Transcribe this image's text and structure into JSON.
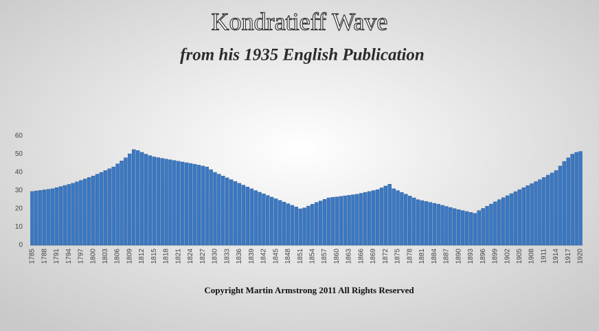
{
  "chart_data": {
    "type": "bar",
    "title": "Kondratieff Wave",
    "subtitle": "from his 1935 English Publication",
    "annotation": "Copyright Martin Armstrong 2011 All Rights Reserved",
    "color": "#3b78c2",
    "grid": false,
    "ylim": [
      0,
      60
    ],
    "yticks": [
      0,
      10,
      20,
      30,
      40,
      50,
      60
    ],
    "categories": [
      "1785",
      null,
      null,
      "1788",
      null,
      null,
      "1791",
      null,
      null,
      "1794",
      null,
      null,
      "1797",
      null,
      null,
      "1800",
      null,
      null,
      "1803",
      null,
      null,
      "1806",
      null,
      null,
      "1809",
      null,
      null,
      "1812",
      null,
      null,
      "1815",
      null,
      null,
      "1818",
      null,
      null,
      "1821",
      null,
      null,
      "1824",
      null,
      null,
      "1827",
      null,
      null,
      "1830",
      null,
      null,
      "1833",
      null,
      null,
      "1836",
      null,
      null,
      "1839",
      null,
      null,
      "1842",
      null,
      null,
      "1845",
      null,
      null,
      "1848",
      null,
      null,
      "1851",
      null,
      null,
      "1854",
      null,
      null,
      "1857",
      null,
      null,
      "1860",
      null,
      null,
      "1863",
      null,
      null,
      "1866",
      null,
      null,
      "1869",
      null,
      null,
      "1872",
      null,
      null,
      "1875",
      null,
      null,
      "1878",
      null,
      null,
      "1881",
      null,
      null,
      "1884",
      null,
      null,
      "1887",
      null,
      null,
      "1890",
      null,
      null,
      "1893",
      null,
      null,
      "1896",
      null,
      null,
      "1899",
      null,
      null,
      "1902",
      null,
      null,
      "1905",
      null,
      null,
      "1908",
      null,
      null,
      "1911",
      null,
      null,
      "1914",
      null,
      null,
      "1917",
      null,
      null,
      "1920"
    ],
    "values": [
      29.5,
      29.8,
      30.1,
      30.4,
      30.7,
      31,
      31.6,
      32.2,
      32.8,
      33.4,
      34,
      34.8,
      35.6,
      36.4,
      37.2,
      38,
      39,
      40,
      41,
      42,
      43,
      44.7,
      46.3,
      48,
      50.2,
      52.5,
      52,
      51,
      50,
      49.2,
      48.5,
      48.1,
      47.7,
      47.3,
      46.9,
      46.5,
      46.1,
      45.7,
      45.3,
      44.9,
      44.5,
      44,
      43.5,
      43,
      41.5,
      40,
      39,
      38,
      37,
      36,
      35,
      34,
      33,
      32,
      31,
      30,
      29.1,
      28.2,
      27.3,
      26.4,
      25.5,
      24.6,
      23.7,
      22.8,
      21.9,
      21,
      20,
      20.5,
      21.5,
      22.5,
      23.5,
      24.3,
      25.2,
      26,
      26.3,
      26.5,
      26.8,
      27.1,
      27.4,
      27.7,
      28,
      28.5,
      29,
      29.5,
      30,
      30.5,
      31.5,
      32.5,
      33.5,
      31,
      30,
      29,
      28,
      27,
      26,
      25,
      24.5,
      24,
      23.5,
      23,
      22.5,
      21.9,
      21.3,
      20.7,
      20.1,
      19.5,
      19,
      18.5,
      18,
      17.5,
      19,
      20.2,
      21.4,
      22.6,
      23.8,
      25,
      26.1,
      27.2,
      28.3,
      29.4,
      30.5,
      31.6,
      32.7,
      33.8,
      34.9,
      36,
      37.2,
      38.5,
      39.7,
      41,
      43.5,
      46,
      48,
      50,
      51,
      51.5
    ]
  }
}
